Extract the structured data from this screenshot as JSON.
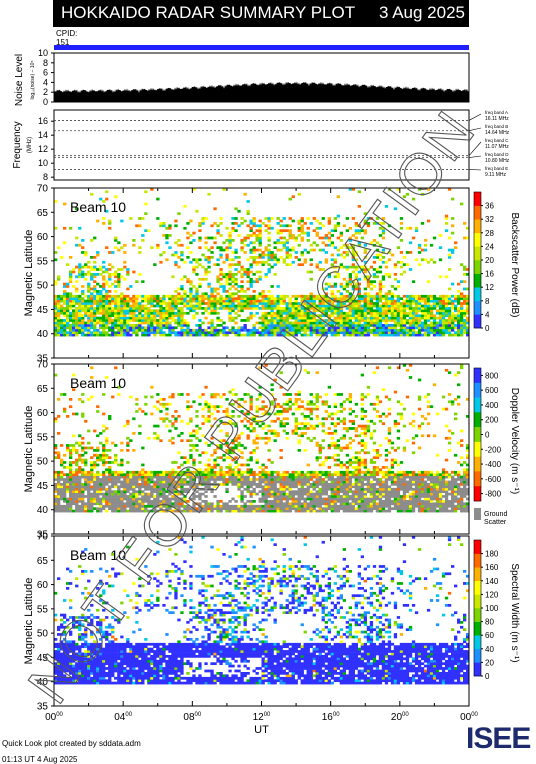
{
  "header": {
    "title": "HOKKAIDO RADAR SUMMARY PLOT",
    "date": "3 Aug 2025",
    "cpid_label": "CPID:",
    "cpid_value": "151",
    "cpid_bar_color": "#1f1fff"
  },
  "noise_panel": {
    "ylabel": "Noise Level",
    "ylabel_sub": "log₁₀(noise) − 10⁵",
    "yticks": [
      0,
      2,
      4,
      6,
      8,
      10
    ],
    "ylim": [
      0,
      10
    ]
  },
  "frequency_panel": {
    "ylabel": "Frequency",
    "ylabel_unit": "(MHz)",
    "yticks": [
      8,
      10,
      12,
      14,
      16
    ],
    "ylim": [
      7.6,
      17.6
    ],
    "bands": [
      {
        "label": "freq band A",
        "value": "16.11 MHz",
        "freq": 16.11
      },
      {
        "label": "freq band B",
        "value": "14.64 MHz",
        "freq": 14.64
      },
      {
        "label": "freq band C",
        "value": "11.07 MHz",
        "freq": 11.07
      },
      {
        "label": "freq band D",
        "value": "10.80 MHz",
        "freq": 10.8
      },
      {
        "label": "freq band E",
        "value": "9.11 MHz",
        "freq": 9.11
      }
    ]
  },
  "chart_data": [
    {
      "type": "heatmap",
      "panel": "power",
      "beam_label": "Beam 10",
      "ylabel": "Magnetic Latitude",
      "yticks": [
        35,
        40,
        45,
        50,
        55,
        60,
        65,
        70
      ],
      "ylim": [
        35,
        70
      ],
      "xlim_hours": [
        0,
        24
      ],
      "colorbar": {
        "label": "Backscatter Power (dB)",
        "ticks": [
          "0",
          "4",
          "8",
          "12",
          "16",
          "20",
          "24",
          "28",
          "32",
          "36"
        ],
        "colors": [
          "#3030ff",
          "#1e90ff",
          "#00c8e6",
          "#00b000",
          "#7cd400",
          "#c8e600",
          "#ffff00",
          "#ffb000",
          "#ff6a00",
          "#ff0000"
        ]
      }
    },
    {
      "type": "heatmap",
      "panel": "velocity",
      "beam_label": "Beam 10",
      "ylabel": "Magnetic Latitude",
      "yticks": [
        35,
        40,
        45,
        50,
        55,
        60,
        65,
        70
      ],
      "ylim": [
        35,
        70
      ],
      "xlim_hours": [
        0,
        24
      ],
      "colorbar": {
        "label": "Doppler Velocity (m s⁻¹)",
        "ticks": [
          "800",
          "600",
          "400",
          "200",
          "0",
          "-200",
          "-400",
          "-600",
          "-800"
        ],
        "colors": [
          "#3030ff",
          "#1e90ff",
          "#00c8e6",
          "#00b000",
          "#7cd400",
          "#ffff00",
          "#ffb000",
          "#ff6a00",
          "#ff0000"
        ],
        "ground_label": "Ground",
        "ground_label2": "Scatter",
        "ground_color": "#8c8c8c"
      }
    },
    {
      "type": "heatmap",
      "panel": "width",
      "beam_label": "Beam 10",
      "ylabel": "Magnetic Latitude",
      "yticks": [
        35,
        40,
        45,
        50,
        55,
        60,
        65,
        70
      ],
      "ylim": [
        35,
        70
      ],
      "xlim_hours": [
        0,
        24
      ],
      "xlabel": "UT",
      "xticks": [
        "00",
        "04",
        "08",
        "12",
        "16",
        "20",
        "00"
      ],
      "colorbar": {
        "label": "Spectral Width (m s⁻¹)",
        "ticks": [
          "0",
          "20",
          "40",
          "60",
          "80",
          "100",
          "120",
          "140",
          "160",
          "180"
        ],
        "colors": [
          "#3030ff",
          "#1e90ff",
          "#00c8e6",
          "#00b000",
          "#7cd400",
          "#c8e600",
          "#ffff00",
          "#ffb000",
          "#ff6a00",
          "#ff0000"
        ]
      }
    }
  ],
  "watermark": "NOT FOR PUBLICATION",
  "footer": {
    "line1": "Quick Look plot created by sddata.adm",
    "line2": "01:13 UT  4 Aug 2025"
  },
  "logo": {
    "text": "ISEE",
    "color_main": "#1e2a6e",
    "color_accent": "#27a845"
  }
}
